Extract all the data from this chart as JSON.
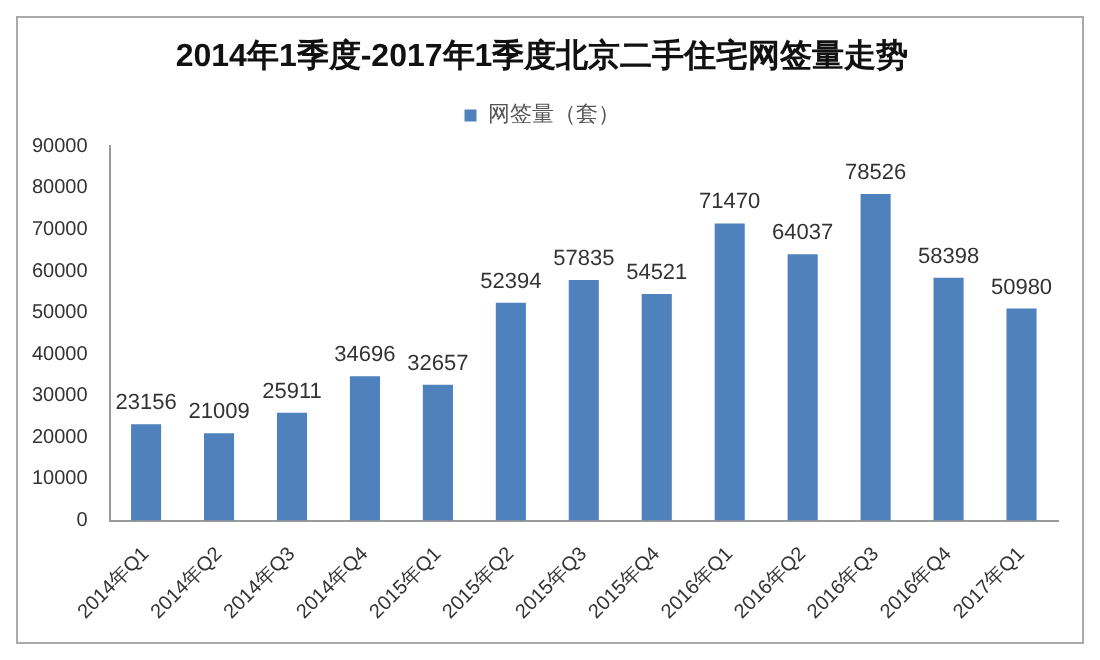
{
  "chart_data": {
    "type": "bar",
    "title": "2014年1季度-2017年1季度北京二手住宅网签量走势",
    "categories": [
      "2014年Q1",
      "2014年Q2",
      "2014年Q3",
      "2014年Q4",
      "2015年Q1",
      "2015年Q2",
      "2015年Q3",
      "2015年Q4",
      "2016年Q1",
      "2016年Q2",
      "2016年Q3",
      "2016年Q4",
      "2017年Q1"
    ],
    "series": [
      {
        "name": "网签量（套）",
        "color": "#4f81bd",
        "values": [
          23156,
          21009,
          25911,
          34696,
          32657,
          52394,
          57835,
          54521,
          71470,
          64037,
          78526,
          58398,
          50980
        ]
      }
    ],
    "ylim": [
      0,
      90000
    ],
    "yticks": [
      0,
      10000,
      20000,
      30000,
      40000,
      50000,
      60000,
      70000,
      80000,
      90000
    ],
    "grid": false,
    "legend": "top",
    "data_labels": true
  }
}
